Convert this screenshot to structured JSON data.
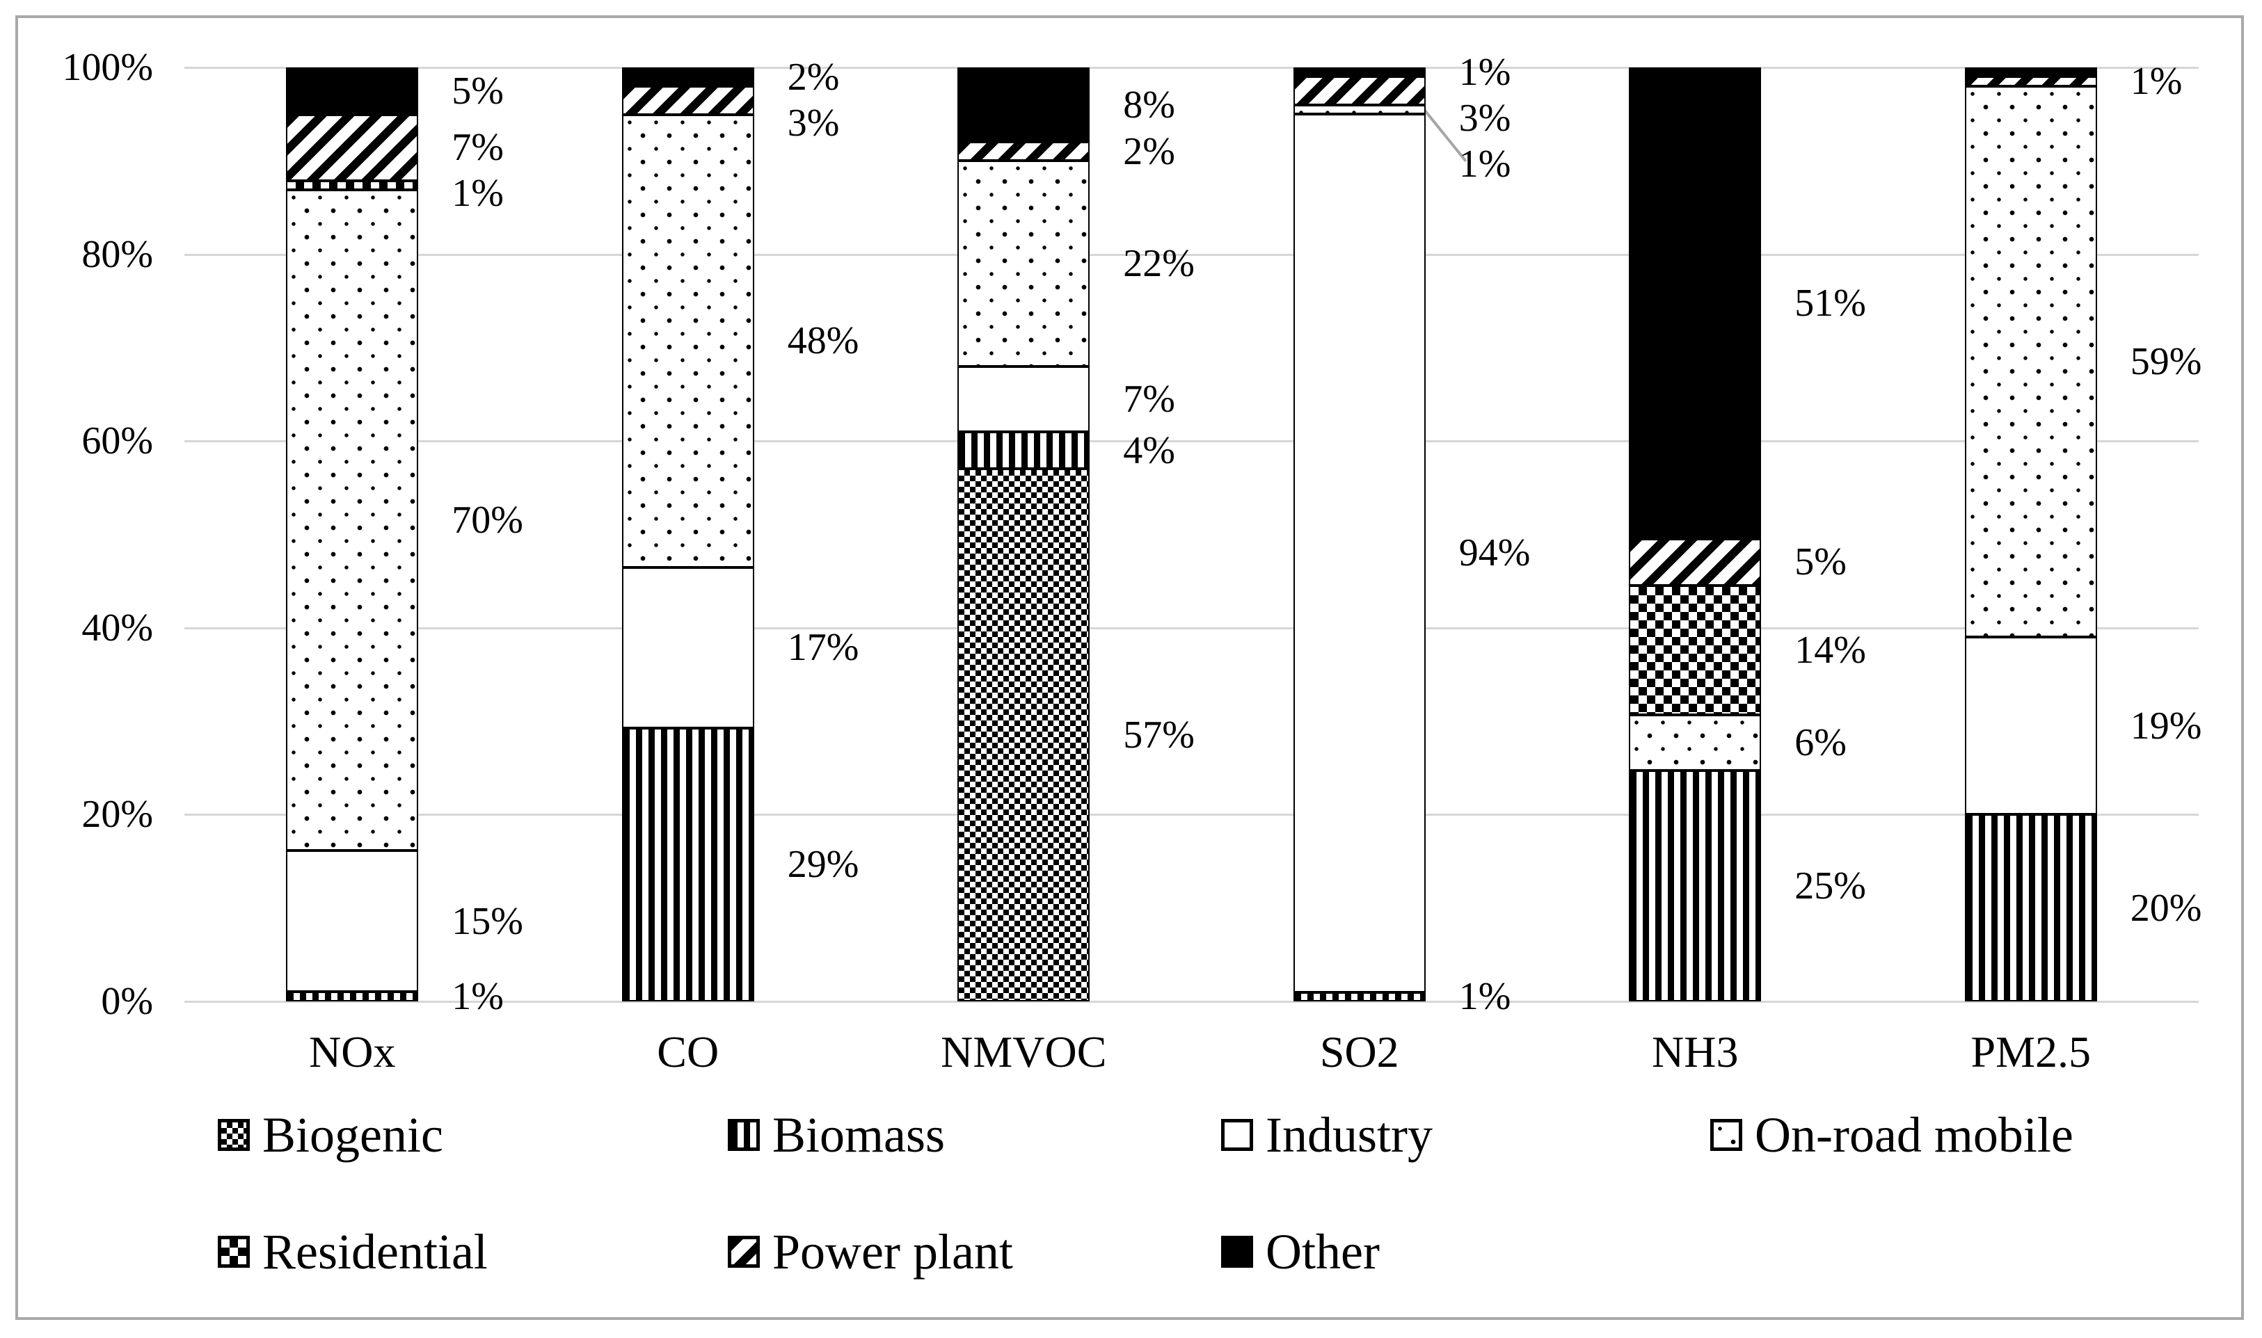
{
  "chart_data": {
    "type": "bar",
    "stacked": true,
    "title": "",
    "xlabel": "",
    "ylabel": "",
    "unit": "%",
    "grid": true,
    "ylim": [
      0,
      100
    ],
    "y_ticks": [
      "0%",
      "20%",
      "40%",
      "60%",
      "80%",
      "100%"
    ],
    "categories": [
      "NOx",
      "CO",
      "NMVOC",
      "SO2",
      "NH3",
      "PM2.5"
    ],
    "series": [
      {
        "name": "Biogenic",
        "pattern": "dense-checker",
        "values": [
          0,
          0,
          57,
          0,
          0,
          0
        ],
        "labels": [
          null,
          null,
          "57%",
          null,
          null,
          null
        ]
      },
      {
        "name": "Biomass",
        "pattern": "vertical-stripes",
        "values": [
          1,
          29,
          4,
          1,
          25,
          20
        ],
        "labels": [
          "1%",
          "29%",
          "4%",
          "1%",
          "25%",
          "20%"
        ]
      },
      {
        "name": "Industry",
        "pattern": "plain-white",
        "values": [
          15,
          17,
          7,
          94,
          0,
          19
        ],
        "labels": [
          "15%",
          "17%",
          "7%",
          "94%",
          null,
          "19%"
        ]
      },
      {
        "name": "On-road mobile",
        "pattern": "sparse-dots",
        "values": [
          70,
          48,
          22,
          1,
          6,
          59
        ],
        "labels": [
          "70%",
          "48%",
          "22%",
          "1%",
          "6%",
          "59%"
        ]
      },
      {
        "name": "Residential",
        "pattern": "checkerboard",
        "values": [
          1,
          0,
          0,
          0,
          14,
          0
        ],
        "labels": [
          "1%",
          null,
          null,
          null,
          "14%",
          null
        ]
      },
      {
        "name": "Power plant",
        "pattern": "diagonal-stripes",
        "values": [
          7,
          3,
          2,
          3,
          5,
          1
        ],
        "labels": [
          "7%",
          "3%",
          "2%",
          "3%",
          "5%",
          "1%"
        ]
      },
      {
        "name": "Other",
        "pattern": "solid-black",
        "values": [
          5,
          2,
          8,
          1,
          51,
          1
        ],
        "labels": [
          "5%",
          "2%",
          "8%",
          "1%",
          "51%",
          null
        ]
      }
    ],
    "leader_lines": [
      {
        "series": "On-road mobile",
        "category": "SO2"
      }
    ],
    "legend": {
      "position": "bottom",
      "rows": [
        [
          "Biogenic",
          "Biomass",
          "Industry",
          "On-road mobile"
        ],
        [
          "Residential",
          "Power plant",
          "Other"
        ]
      ]
    }
  },
  "colors": {
    "foreground": "#000000",
    "background": "#ffffff",
    "gridline": "#d6d6d6",
    "frame": "#a9a9a9",
    "leader_line": "#a6a6a6"
  }
}
